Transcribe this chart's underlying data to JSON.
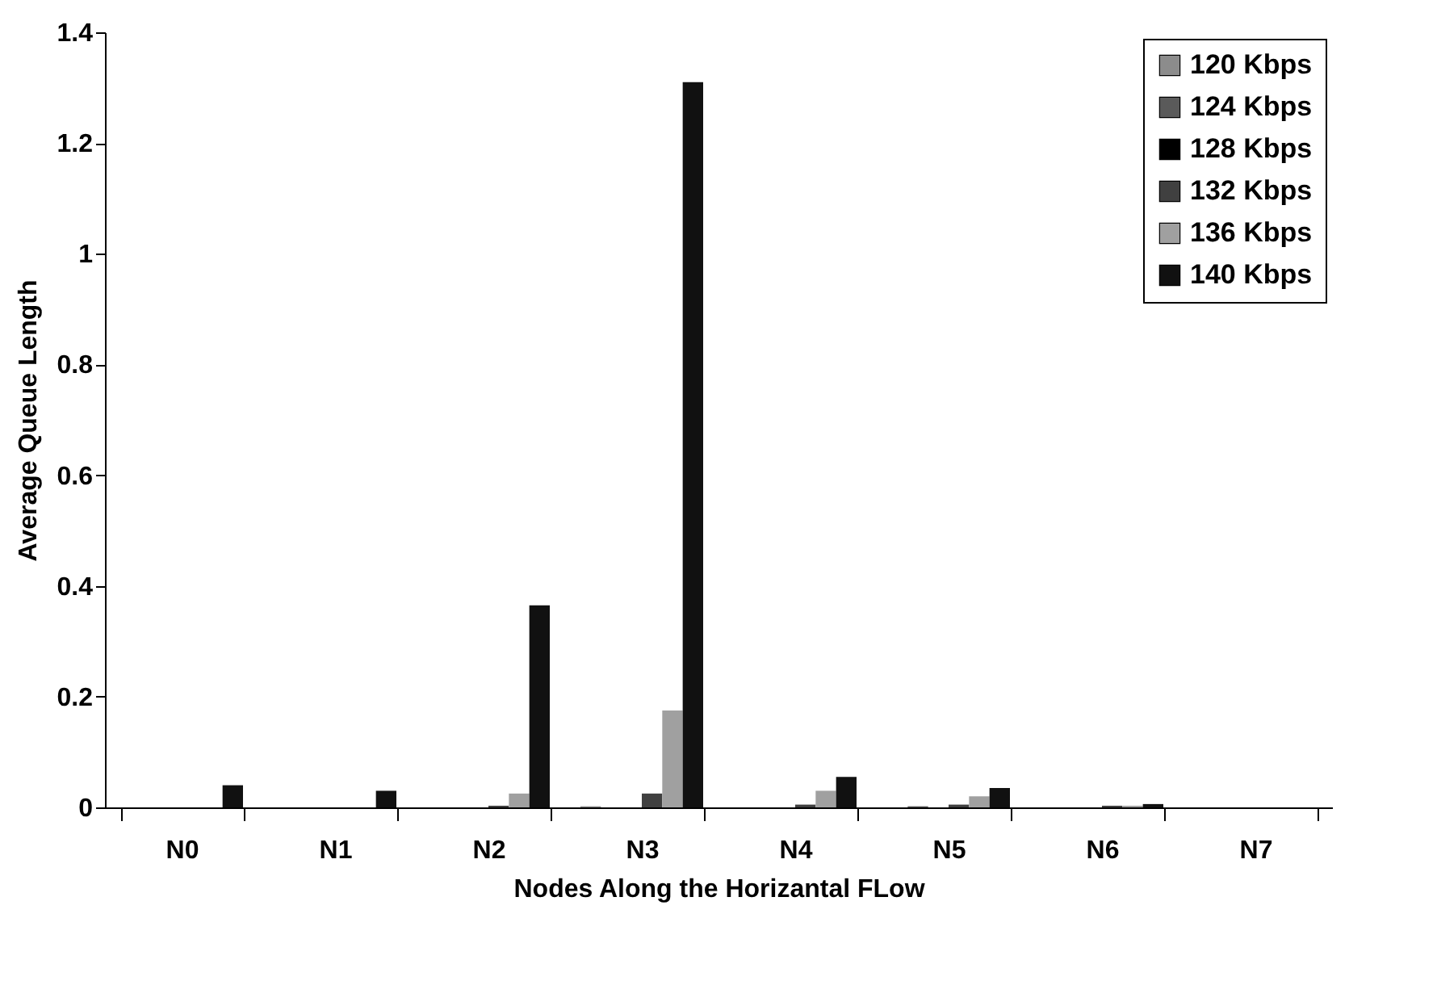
{
  "chart_data": {
    "type": "bar",
    "xlabel": "Nodes Along the Horizantal FLow",
    "ylabel": "Average Queue Length",
    "categories": [
      "N0",
      "N1",
      "N2",
      "N3",
      "N4",
      "N5",
      "N6",
      "N7"
    ],
    "series": [
      {
        "name": "120 Kbps",
        "color": "#8c8c8c",
        "values": [
          0,
          0,
          0,
          0.002,
          0,
          0,
          0,
          0
        ]
      },
      {
        "name": "124 Kbps",
        "color": "#5a5a5a",
        "values": [
          0,
          0,
          0,
          0,
          0,
          0.002,
          0,
          0
        ]
      },
      {
        "name": "128 Kbps",
        "color": "#000000",
        "values": [
          0,
          0,
          0,
          0,
          0,
          0,
          0,
          0
        ]
      },
      {
        "name": "132 Kbps",
        "color": "#404040",
        "values": [
          0,
          0,
          0.003,
          0.025,
          0.005,
          0.005,
          0.003,
          0
        ]
      },
      {
        "name": "136 Kbps",
        "color": "#a0a0a0",
        "values": [
          0,
          0,
          0.025,
          0.175,
          0.03,
          0.02,
          0.003,
          0
        ]
      },
      {
        "name": "140 Kbps",
        "color": "#111111",
        "values": [
          0.04,
          0.03,
          0.365,
          1.31,
          0.055,
          0.035,
          0.006,
          0
        ]
      }
    ],
    "ylim": [
      0,
      1.4
    ],
    "yticks": [
      0,
      0.2,
      0.4,
      0.6,
      0.8,
      1,
      1.2,
      1.4
    ],
    "grid": false,
    "legend": "top right"
  }
}
